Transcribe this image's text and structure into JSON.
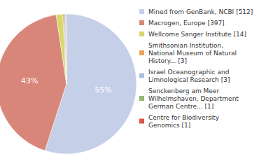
{
  "chart_data": {
    "type": "pie",
    "labels": [
      "Mined from GenBank, NCBI [512]",
      "Macrogen, Europe [397]",
      "Wellcome Sanger Institute [14]",
      "Smithsonian Institution,\nNational Museum of Natural\nHistory... [3]",
      "Israel Oceanographic and\nLimnological Research [3]",
      "Senckenberg am Meer\nWilhelmshaven, Department\nGerman Centre... [1]",
      "Centre for Biodiversity\nGenomics [1]"
    ],
    "values": [
      512,
      397,
      14,
      3,
      3,
      1,
      1
    ],
    "value_labels": [
      "55%",
      "43%",
      null,
      null,
      null,
      null,
      null
    ],
    "colors": [
      "#c5cfe8",
      "#d9867a",
      "#d4d96b",
      "#e8a352",
      "#aabfd9",
      "#8fba6e",
      "#d9564a"
    ],
    "data_labels": true,
    "legend": "right"
  }
}
